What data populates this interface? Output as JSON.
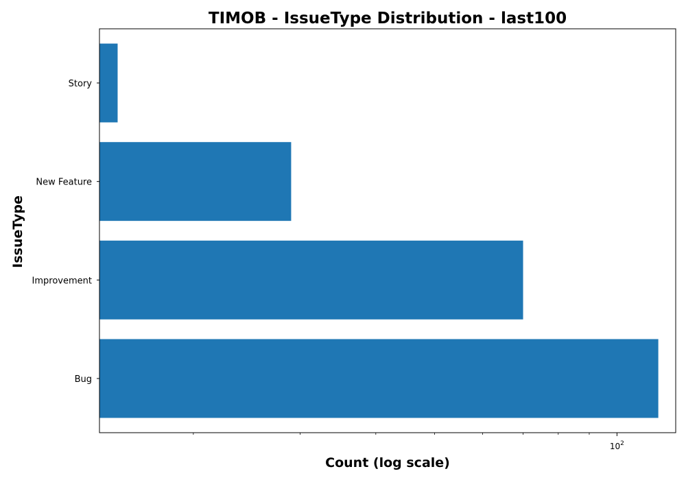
{
  "chart_data": {
    "type": "bar",
    "orientation": "horizontal",
    "title": "TIMOB - IssueType Distribution - last100",
    "xlabel": "Count (log scale)",
    "ylabel": "IssueType",
    "xscale": "log",
    "xlim": [
      14,
      125
    ],
    "categories": [
      "Bug",
      "Improvement",
      "New Feature",
      "Story"
    ],
    "values": [
      117,
      70,
      29,
      15
    ],
    "x_major_ticks": [
      {
        "value": 100,
        "label": "10",
        "exponent": "2"
      }
    ],
    "x_minor_ticks": [
      20,
      30,
      40,
      50,
      60,
      70,
      80,
      90
    ],
    "bar_color": "#1f77b4",
    "grid": false,
    "legend": "none"
  }
}
